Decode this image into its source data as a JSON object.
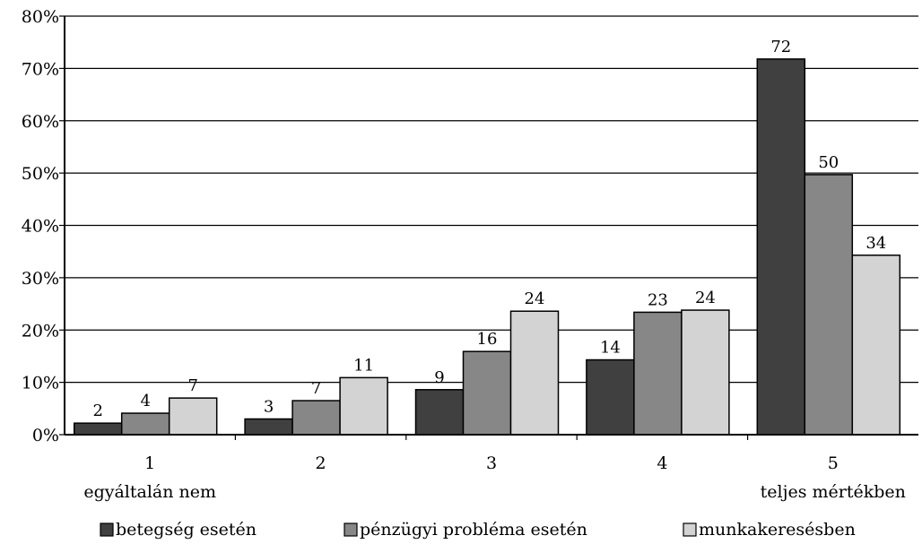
{
  "chart_data": {
    "type": "bar",
    "categories": [
      "1",
      "2",
      "3",
      "4",
      "5"
    ],
    "category_sublabels": [
      "egyáltalán nem",
      "",
      "",
      "",
      "teljes mértékben"
    ],
    "series": [
      {
        "name": "betegség esetén",
        "color": "#404040",
        "values": [
          2,
          3,
          9,
          14,
          72
        ],
        "display": [
          2.2,
          3,
          8.6,
          14.3,
          71.8
        ]
      },
      {
        "name": "pénzügyi probléma esetén",
        "color": "#878787",
        "values": [
          4,
          7,
          16,
          23,
          50
        ],
        "display": [
          4.1,
          6.5,
          15.9,
          23.4,
          49.7
        ]
      },
      {
        "name": "munkakeresésben",
        "color": "#d3d3d3",
        "values": [
          7,
          11,
          24,
          24,
          34
        ],
        "display": [
          7,
          10.9,
          23.6,
          23.8,
          34.3
        ]
      }
    ],
    "y_ticks": [
      "0%",
      "10%",
      "20%",
      "30%",
      "40%",
      "50%",
      "60%",
      "70%",
      "80%"
    ],
    "ylim": [
      0,
      80
    ],
    "grid": true,
    "legend_position": "bottom"
  }
}
